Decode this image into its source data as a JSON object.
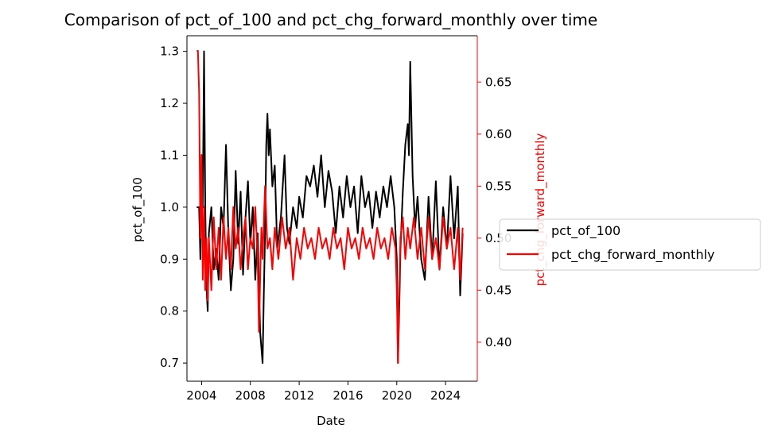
{
  "chart_data": {
    "type": "line",
    "title": "Comparison of pct_of_100 and pct_chg_forward_monthly over time",
    "xlabel": "Date",
    "ylabel": "pct_of_100",
    "y2label": "pct_chg_forward_monthly",
    "x_ticks": [
      "2004",
      "2008",
      "2012",
      "2016",
      "2020",
      "2024"
    ],
    "x_tick_values": [
      2004,
      2008,
      2012,
      2016,
      2020,
      2024
    ],
    "xlim": [
      2002.8,
      2026.6
    ],
    "ylim": [
      0.665,
      1.33
    ],
    "y_ticks": [
      "0.7",
      "0.8",
      "0.9",
      "1.0",
      "1.1",
      "1.2",
      "1.3"
    ],
    "y_tick_values": [
      0.7,
      0.8,
      0.9,
      1.0,
      1.1,
      1.2,
      1.3
    ],
    "y2lim": [
      0.3625,
      0.6945
    ],
    "y2_ticks": [
      "0.40",
      "0.45",
      "0.50",
      "0.55",
      "0.60",
      "0.65"
    ],
    "y2_tick_values": [
      0.4,
      0.45,
      0.5,
      0.55,
      0.6,
      0.65
    ],
    "grid": false,
    "legend": {
      "placement": "right-outside",
      "entries": [
        "pct_of_100",
        "pct_chg_forward_monthly"
      ]
    },
    "series": [
      {
        "name": "pct_of_100",
        "color": "#000000",
        "axis": "left",
        "x": [
          2003.6,
          2003.8,
          2003.9,
          2004.0,
          2004.1,
          2004.2,
          2004.3,
          2004.4,
          2004.5,
          2004.6,
          2004.8,
          2005.0,
          2005.2,
          2005.4,
          2005.6,
          2005.8,
          2006.0,
          2006.2,
          2006.4,
          2006.6,
          2006.8,
          2007.0,
          2007.2,
          2007.4,
          2007.6,
          2007.8,
          2008.0,
          2008.2,
          2008.4,
          2008.6,
          2008.8,
          2009.0,
          2009.1,
          2009.2,
          2009.3,
          2009.4,
          2009.5,
          2009.6,
          2009.8,
          2010.0,
          2010.2,
          2010.5,
          2010.8,
          2011.0,
          2011.2,
          2011.5,
          2011.8,
          2012.0,
          2012.3,
          2012.6,
          2012.9,
          2013.2,
          2013.5,
          2013.8,
          2014.1,
          2014.4,
          2014.7,
          2015.0,
          2015.3,
          2015.6,
          2015.9,
          2016.2,
          2016.5,
          2016.8,
          2017.1,
          2017.4,
          2017.7,
          2018.0,
          2018.3,
          2018.6,
          2018.9,
          2019.2,
          2019.5,
          2019.8,
          2020.0,
          2020.1,
          2020.2,
          2020.3,
          2020.5,
          2020.7,
          2020.9,
          2021.0,
          2021.1,
          2021.3,
          2021.5,
          2021.7,
          2022.0,
          2022.3,
          2022.6,
          2022.9,
          2023.2,
          2023.5,
          2023.8,
          2024.1,
          2024.4,
          2024.7,
          2025.0,
          2025.2,
          2025.4
        ],
        "values": [
          1.0,
          1.0,
          0.9,
          1.1,
          1.0,
          1.3,
          1.0,
          0.85,
          0.8,
          0.95,
          1.0,
          0.88,
          0.92,
          0.86,
          1.0,
          0.96,
          1.12,
          0.95,
          0.84,
          0.9,
          1.07,
          0.93,
          1.03,
          0.87,
          0.98,
          1.05,
          0.93,
          1.0,
          0.86,
          0.95,
          0.76,
          0.7,
          0.83,
          0.95,
          1.12,
          1.18,
          1.1,
          1.15,
          1.04,
          1.08,
          0.92,
          0.98,
          1.1,
          0.96,
          0.93,
          1.0,
          0.96,
          1.02,
          0.98,
          1.06,
          1.04,
          1.08,
          1.02,
          1.1,
          1.0,
          1.07,
          1.03,
          0.95,
          1.04,
          0.98,
          1.06,
          1.0,
          1.04,
          0.95,
          1.06,
          1.0,
          1.03,
          0.96,
          1.03,
          0.98,
          1.04,
          1.0,
          1.06,
          1.0,
          0.9,
          0.7,
          0.8,
          0.92,
          1.03,
          1.12,
          1.16,
          1.1,
          1.28,
          1.06,
          0.96,
          1.02,
          0.9,
          0.86,
          1.02,
          0.9,
          1.05,
          0.88,
          1.0,
          0.92,
          1.06,
          0.94,
          1.04,
          0.83,
          0.95
        ]
      },
      {
        "name": "pct_chg_forward_monthly",
        "color": "#ff0000",
        "axis": "right",
        "x": [
          2003.6,
          2003.7,
          2003.8,
          2003.9,
          2004.0,
          2004.1,
          2004.2,
          2004.3,
          2004.4,
          2004.5,
          2004.6,
          2004.8,
          2005.0,
          2005.2,
          2005.4,
          2005.6,
          2005.8,
          2006.0,
          2006.2,
          2006.4,
          2006.6,
          2006.8,
          2007.0,
          2007.2,
          2007.4,
          2007.6,
          2007.8,
          2008.0,
          2008.2,
          2008.4,
          2008.6,
          2008.7,
          2008.8,
          2008.9,
          2009.0,
          2009.2,
          2009.4,
          2009.6,
          2009.8,
          2010.0,
          2010.3,
          2010.6,
          2010.9,
          2011.2,
          2011.5,
          2011.8,
          2012.1,
          2012.4,
          2012.7,
          2013.0,
          2013.3,
          2013.6,
          2013.9,
          2014.2,
          2014.5,
          2014.8,
          2015.1,
          2015.4,
          2015.7,
          2016.0,
          2016.3,
          2016.6,
          2016.9,
          2017.2,
          2017.5,
          2017.8,
          2018.1,
          2018.4,
          2018.7,
          2019.0,
          2019.3,
          2019.6,
          2019.9,
          2020.0,
          2020.1,
          2020.2,
          2020.3,
          2020.5,
          2020.7,
          2020.9,
          2021.1,
          2021.4,
          2021.7,
          2022.0,
          2022.3,
          2022.6,
          2022.9,
          2023.2,
          2023.5,
          2023.8,
          2024.1,
          2024.4,
          2024.7,
          2025.0,
          2025.2,
          2025.4
        ],
        "values": [
          0.68,
          0.68,
          0.64,
          0.5,
          0.58,
          0.46,
          0.53,
          0.45,
          0.5,
          0.44,
          0.5,
          0.45,
          0.52,
          0.47,
          0.51,
          0.46,
          0.52,
          0.48,
          0.51,
          0.47,
          0.53,
          0.49,
          0.51,
          0.47,
          0.5,
          0.52,
          0.47,
          0.5,
          0.49,
          0.53,
          0.48,
          0.41,
          0.46,
          0.51,
          0.48,
          0.55,
          0.49,
          0.5,
          0.47,
          0.51,
          0.48,
          0.52,
          0.49,
          0.51,
          0.46,
          0.5,
          0.48,
          0.51,
          0.49,
          0.5,
          0.48,
          0.51,
          0.49,
          0.5,
          0.48,
          0.51,
          0.49,
          0.5,
          0.47,
          0.51,
          0.49,
          0.5,
          0.48,
          0.51,
          0.49,
          0.5,
          0.48,
          0.51,
          0.49,
          0.5,
          0.48,
          0.51,
          0.49,
          0.45,
          0.38,
          0.45,
          0.5,
          0.52,
          0.48,
          0.51,
          0.49,
          0.52,
          0.48,
          0.51,
          0.47,
          0.52,
          0.48,
          0.5,
          0.47,
          0.52,
          0.49,
          0.51,
          0.47,
          0.51,
          0.46,
          0.51
        ]
      }
    ]
  }
}
